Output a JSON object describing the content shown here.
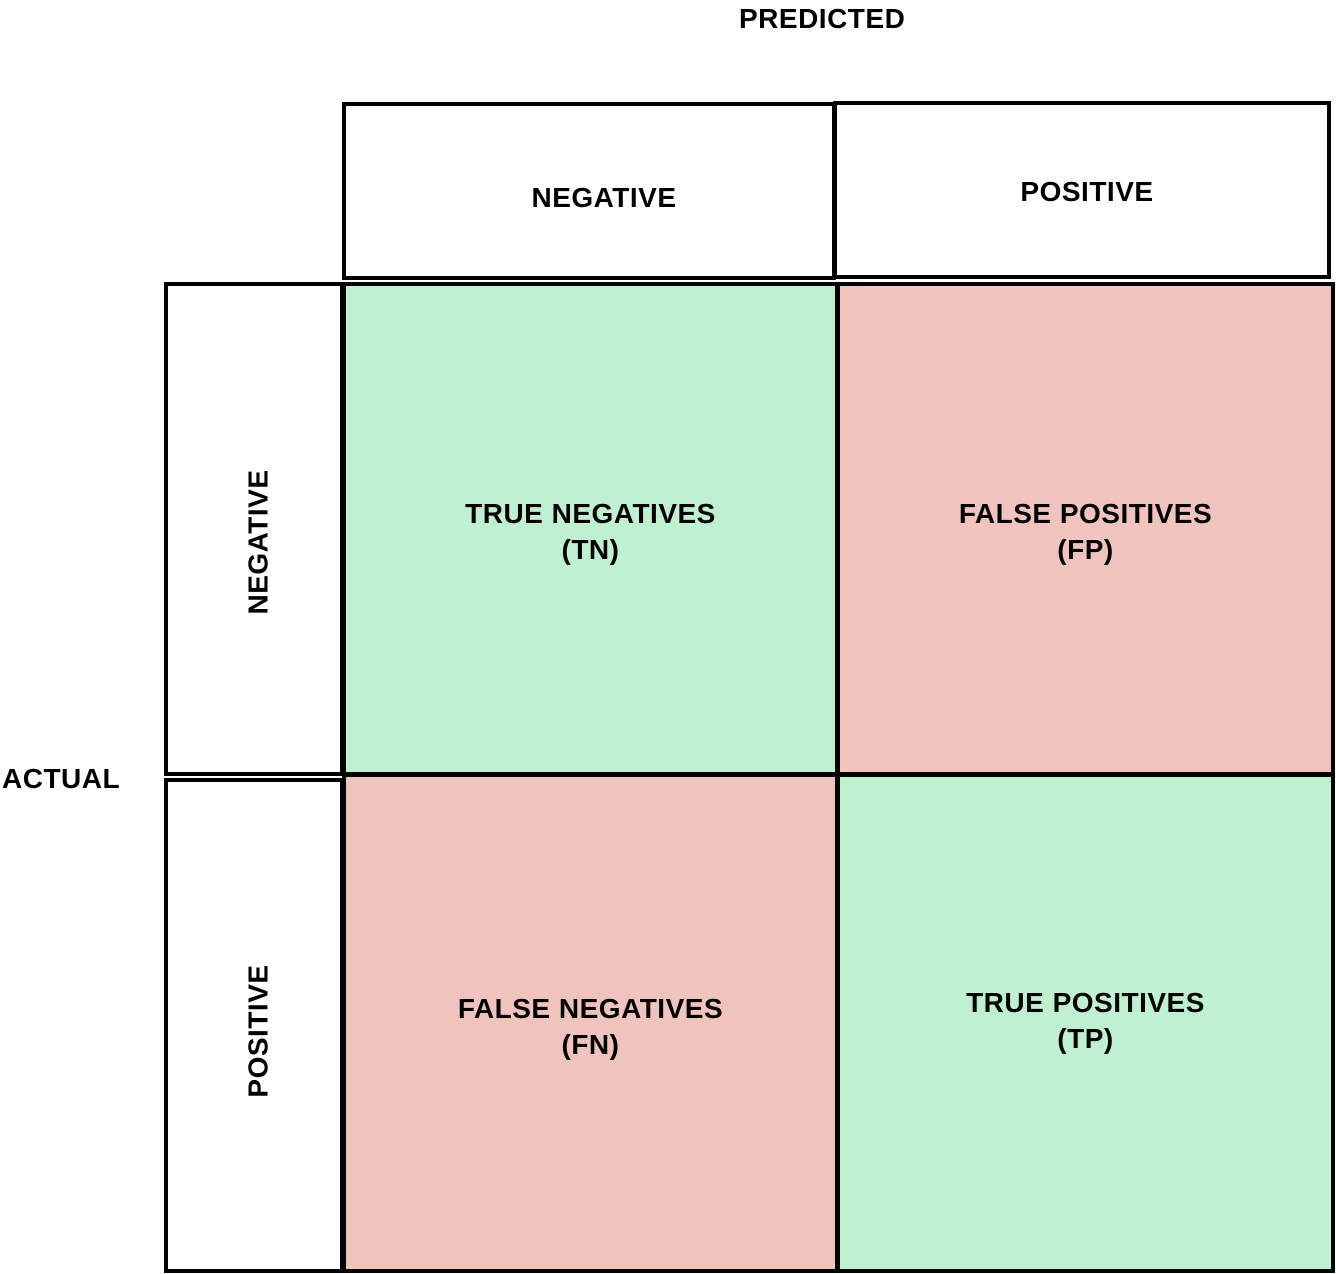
{
  "axes": {
    "predicted_label": "PREDICTED",
    "actual_label": "ACTUAL"
  },
  "columns": {
    "negative": "NEGATIVE",
    "positive": "POSITIVE"
  },
  "rows": {
    "negative": "NEGATIVE",
    "positive": "POSITIVE"
  },
  "cells": {
    "tn": {
      "line1": "TRUE NEGATIVES",
      "line2": "(TN)",
      "color": "#bff0d0"
    },
    "fp": {
      "line1": "FALSE POSITIVES",
      "line2": "(FP)",
      "color": "#f0c4bc"
    },
    "fn": {
      "line1": "FALSE NEGATIVES",
      "line2": "(FN)",
      "color": "#f0c4bc"
    },
    "tp": {
      "line1": "TRUE POSITIVES",
      "line2": "(TP)",
      "color": "#bff0d0"
    }
  }
}
